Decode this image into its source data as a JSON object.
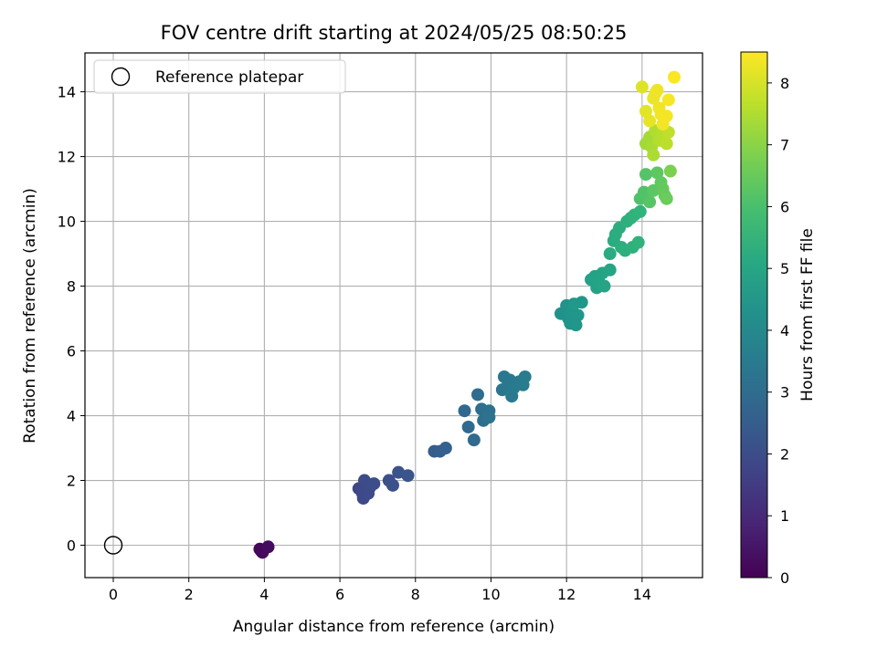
{
  "chart_data": {
    "type": "scatter",
    "title": "FOV centre drift starting at 2024/05/25 08:50:25",
    "xlabel": "Angular distance from reference (arcmin)",
    "ylabel": "Rotation from reference (arcmin)",
    "xlim": [
      -0.75,
      15.6
    ],
    "ylim": [
      -1,
      15.2
    ],
    "xticks": [
      0,
      2,
      4,
      6,
      8,
      10,
      12,
      14
    ],
    "yticks": [
      0,
      2,
      4,
      6,
      8,
      10,
      12,
      14
    ],
    "grid": true,
    "legend": {
      "placement": "top-left",
      "entries": [
        "Reference platepar"
      ]
    },
    "reference_point": {
      "x": 0,
      "y": 0
    },
    "colorbar": {
      "label": "Hours from first FF file",
      "colormap": "viridis",
      "range": [
        0,
        8.5
      ],
      "ticks": [
        0,
        1,
        2,
        3,
        4,
        5,
        6,
        7,
        8
      ]
    },
    "series": [
      {
        "points": [
          {
            "x": 3.92,
            "y": -0.18,
            "c": 0.1
          },
          {
            "x": 3.88,
            "y": -0.12,
            "c": 0.15
          },
          {
            "x": 3.95,
            "y": -0.22,
            "c": 0.2
          },
          {
            "x": 4.1,
            "y": -0.05,
            "c": 0.25
          },
          {
            "x": 6.5,
            "y": 1.75,
            "c": 1.8
          },
          {
            "x": 6.6,
            "y": 1.6,
            "c": 1.82
          },
          {
            "x": 6.62,
            "y": 1.45,
            "c": 1.85
          },
          {
            "x": 6.7,
            "y": 1.9,
            "c": 1.88
          },
          {
            "x": 6.75,
            "y": 1.6,
            "c": 1.9
          },
          {
            "x": 6.65,
            "y": 2.0,
            "c": 1.92
          },
          {
            "x": 6.8,
            "y": 1.8,
            "c": 1.95
          },
          {
            "x": 6.9,
            "y": 1.9,
            "c": 1.97
          },
          {
            "x": 7.3,
            "y": 2.0,
            "c": 2.05
          },
          {
            "x": 7.4,
            "y": 1.85,
            "c": 2.1
          },
          {
            "x": 7.55,
            "y": 2.25,
            "c": 2.2
          },
          {
            "x": 7.8,
            "y": 2.15,
            "c": 2.25
          },
          {
            "x": 8.5,
            "y": 2.9,
            "c": 2.5
          },
          {
            "x": 8.65,
            "y": 2.9,
            "c": 2.55
          },
          {
            "x": 8.8,
            "y": 3.0,
            "c": 2.6
          },
          {
            "x": 9.3,
            "y": 4.15,
            "c": 2.85
          },
          {
            "x": 9.4,
            "y": 3.65,
            "c": 2.9
          },
          {
            "x": 9.55,
            "y": 3.25,
            "c": 2.95
          },
          {
            "x": 9.65,
            "y": 4.65,
            "c": 3.0
          },
          {
            "x": 9.75,
            "y": 4.2,
            "c": 3.05
          },
          {
            "x": 9.8,
            "y": 3.85,
            "c": 3.1
          },
          {
            "x": 9.9,
            "y": 4.05,
            "c": 3.12
          },
          {
            "x": 9.95,
            "y": 4.15,
            "c": 3.15
          },
          {
            "x": 9.95,
            "y": 3.95,
            "c": 3.18
          },
          {
            "x": 10.3,
            "y": 4.8,
            "c": 3.35
          },
          {
            "x": 10.35,
            "y": 5.2,
            "c": 3.38
          },
          {
            "x": 10.45,
            "y": 4.95,
            "c": 3.4
          },
          {
            "x": 10.5,
            "y": 5.1,
            "c": 3.42
          },
          {
            "x": 10.55,
            "y": 4.6,
            "c": 3.45
          },
          {
            "x": 10.6,
            "y": 4.85,
            "c": 3.48
          },
          {
            "x": 10.75,
            "y": 5.05,
            "c": 3.5
          },
          {
            "x": 10.85,
            "y": 4.95,
            "c": 3.52
          },
          {
            "x": 10.9,
            "y": 5.2,
            "c": 3.55
          },
          {
            "x": 11.85,
            "y": 7.15,
            "c": 4.3
          },
          {
            "x": 12.0,
            "y": 7.4,
            "c": 4.33
          },
          {
            "x": 12.05,
            "y": 7.0,
            "c": 4.36
          },
          {
            "x": 12.1,
            "y": 6.85,
            "c": 4.4
          },
          {
            "x": 12.15,
            "y": 7.2,
            "c": 4.42
          },
          {
            "x": 12.25,
            "y": 6.8,
            "c": 4.45
          },
          {
            "x": 12.3,
            "y": 7.1,
            "c": 4.48
          },
          {
            "x": 12.4,
            "y": 7.5,
            "c": 4.5
          },
          {
            "x": 12.2,
            "y": 7.45,
            "c": 4.52
          },
          {
            "x": 12.65,
            "y": 8.2,
            "c": 4.85
          },
          {
            "x": 12.75,
            "y": 8.3,
            "c": 4.88
          },
          {
            "x": 12.8,
            "y": 7.95,
            "c": 4.9
          },
          {
            "x": 12.85,
            "y": 8.15,
            "c": 4.92
          },
          {
            "x": 12.95,
            "y": 8.4,
            "c": 4.95
          },
          {
            "x": 13.0,
            "y": 8.0,
            "c": 4.98
          },
          {
            "x": 13.15,
            "y": 8.5,
            "c": 5.0
          },
          {
            "x": 13.15,
            "y": 9.0,
            "c": 5.2
          },
          {
            "x": 13.25,
            "y": 9.4,
            "c": 5.23
          },
          {
            "x": 13.3,
            "y": 9.6,
            "c": 5.26
          },
          {
            "x": 13.4,
            "y": 9.8,
            "c": 5.3
          },
          {
            "x": 13.45,
            "y": 9.2,
            "c": 5.32
          },
          {
            "x": 13.55,
            "y": 9.1,
            "c": 5.35
          },
          {
            "x": 13.6,
            "y": 10.0,
            "c": 5.38
          },
          {
            "x": 13.7,
            "y": 10.1,
            "c": 5.4
          },
          {
            "x": 13.75,
            "y": 9.2,
            "c": 5.43
          },
          {
            "x": 13.8,
            "y": 10.2,
            "c": 5.46
          },
          {
            "x": 13.9,
            "y": 9.35,
            "c": 5.48
          },
          {
            "x": 13.95,
            "y": 10.3,
            "c": 5.5
          },
          {
            "x": 13.95,
            "y": 10.7,
            "c": 6.1
          },
          {
            "x": 14.05,
            "y": 10.9,
            "c": 6.15
          },
          {
            "x": 14.1,
            "y": 11.45,
            "c": 6.2
          },
          {
            "x": 14.2,
            "y": 10.6,
            "c": 6.25
          },
          {
            "x": 14.3,
            "y": 10.95,
            "c": 6.3
          },
          {
            "x": 14.4,
            "y": 11.5,
            "c": 6.35
          },
          {
            "x": 14.5,
            "y": 11.2,
            "c": 6.4
          },
          {
            "x": 14.55,
            "y": 11.0,
            "c": 6.45
          },
          {
            "x": 14.6,
            "y": 10.8,
            "c": 6.5
          },
          {
            "x": 14.65,
            "y": 10.7,
            "c": 6.55
          },
          {
            "x": 14.75,
            "y": 11.55,
            "c": 6.8
          },
          {
            "x": 14.1,
            "y": 12.4,
            "c": 7.3
          },
          {
            "x": 14.2,
            "y": 12.6,
            "c": 7.35
          },
          {
            "x": 14.25,
            "y": 12.3,
            "c": 7.4
          },
          {
            "x": 14.3,
            "y": 12.05,
            "c": 7.45
          },
          {
            "x": 14.35,
            "y": 12.8,
            "c": 7.5
          },
          {
            "x": 14.45,
            "y": 12.5,
            "c": 7.55
          },
          {
            "x": 14.55,
            "y": 12.7,
            "c": 7.6
          },
          {
            "x": 14.65,
            "y": 12.4,
            "c": 7.65
          },
          {
            "x": 14.7,
            "y": 12.75,
            "c": 7.7
          },
          {
            "x": 14.0,
            "y": 14.15,
            "c": 8.1
          },
          {
            "x": 14.1,
            "y": 13.4,
            "c": 8.15
          },
          {
            "x": 14.2,
            "y": 13.1,
            "c": 8.2
          },
          {
            "x": 14.3,
            "y": 13.8,
            "c": 8.25
          },
          {
            "x": 14.35,
            "y": 13.95,
            "c": 8.28
          },
          {
            "x": 14.4,
            "y": 14.05,
            "c": 8.3
          },
          {
            "x": 14.45,
            "y": 13.5,
            "c": 8.32
          },
          {
            "x": 14.5,
            "y": 13.3,
            "c": 8.34
          },
          {
            "x": 14.55,
            "y": 13.0,
            "c": 8.36
          },
          {
            "x": 14.65,
            "y": 13.25,
            "c": 8.38
          },
          {
            "x": 14.7,
            "y": 13.75,
            "c": 8.4
          },
          {
            "x": 14.85,
            "y": 14.45,
            "c": 8.45
          }
        ]
      }
    ]
  }
}
